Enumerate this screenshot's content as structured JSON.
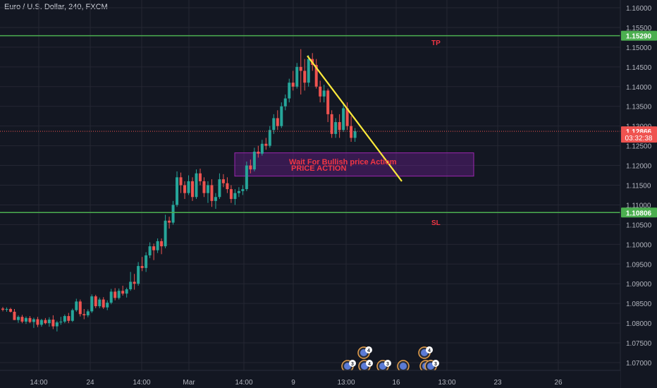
{
  "header": {
    "symbol": "Euro / U.S. Dollar, 240, FXCM"
  },
  "colors": {
    "background": "#131722",
    "grid": "#242733",
    "up": "#26a69a",
    "down": "#ef5350",
    "level_line": "#4caf50",
    "trend_line": "#ffeb3b",
    "zone": "#7b1fa2",
    "text_label": "#f23645"
  },
  "chart_data": {
    "type": "candlestick",
    "symbol": "EURUSD",
    "timeframe": "240",
    "ylim": [
      1.0665,
      1.162
    ],
    "y_ticks": [
      "1.16000",
      "1.15500",
      "1.15000",
      "1.14500",
      "1.14000",
      "1.13500",
      "1.13000",
      "1.12500",
      "1.12000",
      "1.11500",
      "1.11000",
      "1.10500",
      "1.10000",
      "1.09500",
      "1.09000",
      "1.08500",
      "1.08000",
      "1.07500",
      "1.07000"
    ],
    "x_ticks": [
      "14:00",
      "24",
      "14:00",
      "Mar",
      "14:00",
      "9",
      "13:00",
      "16",
      "13:00",
      "23",
      "26"
    ],
    "price_tags": [
      {
        "label": "1.15290",
        "value": 1.1529,
        "kind": "level"
      },
      {
        "label": "1.12866",
        "value": 1.12866,
        "kind": "last"
      },
      {
        "label": "03:32:38",
        "value": 1.12705,
        "kind": "countdown"
      },
      {
        "label": "1.10806",
        "value": 1.10806,
        "kind": "level"
      }
    ],
    "horizontal_lines": [
      {
        "name": "TP",
        "value": 1.1529
      },
      {
        "name": "SL",
        "value": 1.10806
      }
    ],
    "annotations": [
      {
        "text": "TP",
        "near": "TP line"
      },
      {
        "text": "SL",
        "near": "SL line"
      },
      {
        "text": "Wait For Bullish price Actiom",
        "near": "zone"
      },
      {
        "text": "PRICE ACTION",
        "near": "zone"
      }
    ],
    "zone": {
      "top": 1.1232,
      "bottom": 1.1173,
      "from_bar": 49,
      "to_bar": 120
    },
    "trend_line": {
      "from_bar": 101,
      "from_value": 1.1478,
      "to_bar": 132,
      "to_value": 1.116
    },
    "events": {
      "upper": [
        {
          "badge": "4"
        },
        {
          "badge": "4"
        }
      ],
      "lower": [
        {
          "badge": "3"
        },
        {
          "badge": "4"
        },
        {
          "badge": "3"
        },
        {
          "badge": ""
        },
        {
          "badge": "4"
        },
        {
          "badge": "3"
        }
      ]
    },
    "candles": [
      [
        1.0837,
        1.0841,
        1.083,
        1.0834
      ],
      [
        1.0834,
        1.084,
        1.0829,
        1.0836
      ],
      [
        1.0836,
        1.0839,
        1.0827,
        1.0829
      ],
      [
        1.0829,
        1.0836,
        1.0808,
        1.0808
      ],
      [
        1.0808,
        1.082,
        1.0801,
        1.0816
      ],
      [
        1.0816,
        1.0821,
        1.08,
        1.0804
      ],
      [
        1.0804,
        1.0817,
        1.0798,
        1.0813
      ],
      [
        1.0813,
        1.0818,
        1.08,
        1.0803
      ],
      [
        1.0803,
        1.0814,
        1.0788,
        1.081
      ],
      [
        1.081,
        1.0816,
        1.079,
        1.0796
      ],
      [
        1.0796,
        1.0811,
        1.0791,
        1.0808
      ],
      [
        1.0808,
        1.0813,
        1.0797,
        1.08
      ],
      [
        1.08,
        1.0815,
        1.0791,
        1.0809
      ],
      [
        1.0809,
        1.082,
        1.0785,
        1.0792
      ],
      [
        1.0792,
        1.0806,
        1.0779,
        1.0802
      ],
      [
        1.0802,
        1.0816,
        1.0796,
        1.0804
      ],
      [
        1.0804,
        1.0822,
        1.08,
        1.0818
      ],
      [
        1.0818,
        1.0826,
        1.08,
        1.0806
      ],
      [
        1.0806,
        1.0837,
        1.0803,
        1.0833
      ],
      [
        1.0833,
        1.0862,
        1.0829,
        1.0855
      ],
      [
        1.0855,
        1.086,
        1.0817,
        1.0823
      ],
      [
        1.0823,
        1.0836,
        1.081,
        1.082
      ],
      [
        1.082,
        1.0835,
        1.0815,
        1.083
      ],
      [
        1.083,
        1.0873,
        1.0826,
        1.0868
      ],
      [
        1.0868,
        1.0872,
        1.0838,
        1.0843
      ],
      [
        1.0843,
        1.0865,
        1.0838,
        1.086
      ],
      [
        1.086,
        1.0866,
        1.0836,
        1.084
      ],
      [
        1.084,
        1.0858,
        1.0833,
        1.0852
      ],
      [
        1.0852,
        1.0887,
        1.0848,
        1.088
      ],
      [
        1.088,
        1.0889,
        1.0858,
        1.0864
      ],
      [
        1.0864,
        1.0888,
        1.086,
        1.0882
      ],
      [
        1.0882,
        1.0895,
        1.087,
        1.0875
      ],
      [
        1.0875,
        1.089,
        1.0865,
        1.0886
      ],
      [
        1.0886,
        1.093,
        1.0882,
        1.0905
      ],
      [
        1.0905,
        1.0925,
        1.0885,
        1.09
      ],
      [
        1.09,
        1.0955,
        1.0895,
        1.0945
      ],
      [
        1.0945,
        1.0968,
        1.0932,
        1.094
      ],
      [
        1.094,
        1.098,
        1.093,
        1.0972
      ],
      [
        1.0972,
        1.1005,
        1.0965,
        1.0995
      ],
      [
        1.0995,
        1.1002,
        1.096,
        1.0985
      ],
      [
        1.0985,
        1.1015,
        1.0978,
        1.1008
      ],
      [
        1.1008,
        1.1015,
        1.0975,
        1.0995
      ],
      [
        1.0995,
        1.1075,
        1.099,
        1.106
      ],
      [
        1.106,
        1.107,
        1.104,
        1.1055
      ],
      [
        1.1055,
        1.111,
        1.105,
        1.11
      ],
      [
        1.11,
        1.1185,
        1.1095,
        1.117
      ],
      [
        1.117,
        1.1182,
        1.113,
        1.115
      ],
      [
        1.115,
        1.116,
        1.1115,
        1.113
      ],
      [
        1.113,
        1.1175,
        1.1125,
        1.116
      ],
      [
        1.116,
        1.117,
        1.111,
        1.112
      ],
      [
        1.112,
        1.119,
        1.1115,
        1.118
      ],
      [
        1.118,
        1.1192,
        1.115,
        1.116
      ],
      [
        1.116,
        1.117,
        1.112,
        1.113
      ],
      [
        1.113,
        1.116,
        1.1105,
        1.115
      ],
      [
        1.115,
        1.1165,
        1.1095,
        1.111
      ],
      [
        1.111,
        1.113,
        1.109,
        1.112
      ],
      [
        1.112,
        1.118,
        1.1115,
        1.1165
      ],
      [
        1.1165,
        1.1178,
        1.1145,
        1.1155
      ],
      [
        1.1155,
        1.117,
        1.113,
        1.114
      ],
      [
        1.114,
        1.115,
        1.1105,
        1.1115
      ],
      [
        1.1115,
        1.114,
        1.11,
        1.113
      ],
      [
        1.113,
        1.1145,
        1.112,
        1.1135
      ],
      [
        1.1135,
        1.115,
        1.1125,
        1.114
      ],
      [
        1.114,
        1.121,
        1.1135,
        1.12
      ],
      [
        1.12,
        1.1215,
        1.118,
        1.119
      ],
      [
        1.119,
        1.1245,
        1.1185,
        1.1235
      ],
      [
        1.1235,
        1.125,
        1.122,
        1.123
      ],
      [
        1.123,
        1.1265,
        1.1225,
        1.1255
      ],
      [
        1.1255,
        1.127,
        1.124,
        1.125
      ],
      [
        1.125,
        1.13,
        1.1245,
        1.129
      ],
      [
        1.129,
        1.133,
        1.128,
        1.132
      ],
      [
        1.132,
        1.134,
        1.129,
        1.13
      ],
      [
        1.13,
        1.136,
        1.1295,
        1.135
      ],
      [
        1.135,
        1.138,
        1.134,
        1.137
      ],
      [
        1.137,
        1.142,
        1.136,
        1.141
      ],
      [
        1.141,
        1.144,
        1.139,
        1.14
      ],
      [
        1.14,
        1.146,
        1.1395,
        1.145
      ],
      [
        1.145,
        1.1495,
        1.138,
        1.144
      ],
      [
        1.144,
        1.147,
        1.139,
        1.141
      ],
      [
        1.141,
        1.148,
        1.14,
        1.147
      ],
      [
        1.147,
        1.1485,
        1.144,
        1.1455
      ],
      [
        1.1455,
        1.147,
        1.1395,
        1.14
      ],
      [
        1.14,
        1.1415,
        1.136,
        1.1375
      ],
      [
        1.1375,
        1.1405,
        1.136,
        1.139
      ],
      [
        1.139,
        1.1395,
        1.131,
        1.133
      ],
      [
        1.133,
        1.134,
        1.127,
        1.128
      ],
      [
        1.128,
        1.132,
        1.127,
        1.131
      ],
      [
        1.131,
        1.133,
        1.127,
        1.129
      ],
      [
        1.129,
        1.136,
        1.1285,
        1.1345
      ],
      [
        1.1345,
        1.136,
        1.129,
        1.13
      ],
      [
        1.13,
        1.1325,
        1.126,
        1.127
      ],
      [
        1.127,
        1.1295,
        1.126,
        1.1287
      ]
    ]
  }
}
